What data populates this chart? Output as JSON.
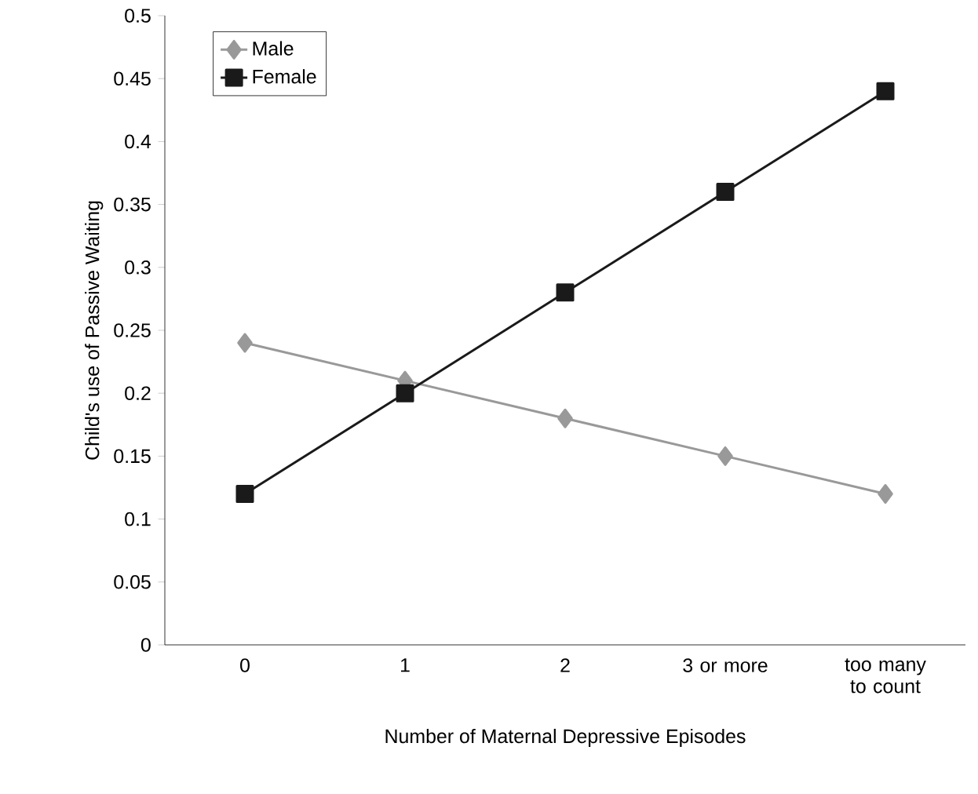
{
  "chart_data": {
    "type": "line",
    "xlabel": "Number of Maternal Depressive Episodes",
    "ylabel": "Child's use of Passive Waiting",
    "categories": [
      "0",
      "1",
      "2",
      "3 or more",
      "too many to count"
    ],
    "series": [
      {
        "name": "Male",
        "color": "#999999",
        "marker": "diamond",
        "values": [
          0.24,
          0.21,
          0.18,
          0.15,
          0.12
        ]
      },
      {
        "name": "Female",
        "color": "#1a1a1a",
        "marker": "square",
        "values": [
          0.12,
          0.2,
          0.28,
          0.36,
          0.44
        ]
      }
    ],
    "ylim": [
      0,
      0.5
    ],
    "yticks": [
      0,
      0.05,
      0.1,
      0.15,
      0.2,
      0.25,
      0.3,
      0.35,
      0.4,
      0.45,
      0.5
    ],
    "grid": false,
    "legend": "top left",
    "line_style": "solid"
  }
}
